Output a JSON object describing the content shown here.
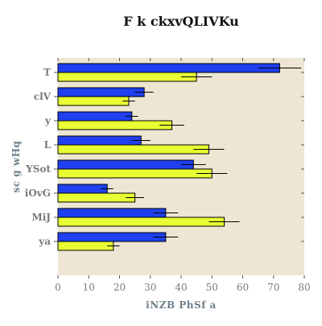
{
  "chart_data": {
    "type": "bar",
    "orientation": "horizontal",
    "title": "F k ckxvQLIVKu",
    "xlabel": "iNZB  PhSf a",
    "ylabel": "sc  g wHq",
    "xlim": [
      0,
      80
    ],
    "xticks": [
      0,
      10,
      20,
      30,
      40,
      50,
      60,
      70,
      80
    ],
    "grid": false,
    "categories": [
      "T",
      "clV",
      "y",
      "L",
      "YSot",
      "iOvG",
      "MiJ",
      "ya"
    ],
    "series": [
      {
        "color": "#1f3ff0",
        "values": [
          72,
          28,
          24,
          27,
          44,
          16,
          35,
          35
        ],
        "errors": [
          7,
          3,
          2,
          3,
          4,
          2,
          4,
          4
        ]
      },
      {
        "color": "#e8ff33",
        "values": [
          45,
          23,
          37,
          49,
          50,
          25,
          54,
          18
        ],
        "errors": [
          5,
          2,
          4,
          5,
          5,
          3,
          5,
          2
        ]
      }
    ],
    "colors": {
      "plot_background": "#ede6d3",
      "error_bar": "#000000",
      "bar_edge": "#000000"
    }
  }
}
